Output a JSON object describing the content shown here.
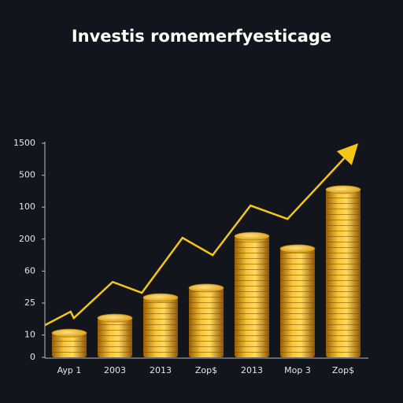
{
  "chart_data": {
    "type": "bar",
    "title": "Investis romemerfyesticage",
    "categories": [
      "Ayp 1",
      "2003",
      "2013",
      "Zop$",
      "2013",
      "Mop 3",
      "Zop$"
    ],
    "values": [
      0.76,
      1.23,
      1.87,
      2.17,
      3.79,
      3.4,
      5.25
    ],
    "color": "#e8a715",
    "ylim": [
      0,
      6.7
    ],
    "yticks": [
      0,
      {
        "value": 0.7,
        "label": "10"
      },
      {
        "value": 1.7,
        "label": "25"
      },
      {
        "value": 2.7,
        "label": "60"
      },
      {
        "value": 3.7,
        "label": "200"
      },
      {
        "value": 4.7,
        "label": "100"
      },
      {
        "value": 5.7,
        "label": "500"
      },
      {
        "value": 6.7,
        "label": "1500"
      }
    ],
    "trend": {
      "color": "#f5c518",
      "x": [
        -0.53,
        0.03,
        0.1,
        0.95,
        1.59,
        2.48,
        3.14,
        3.97,
        4.78,
        6.33
      ],
      "values": [
        1.01,
        1.43,
        1.23,
        2.36,
        2.02,
        3.74,
        3.2,
        4.75,
        4.33,
        6.7
      ]
    }
  }
}
